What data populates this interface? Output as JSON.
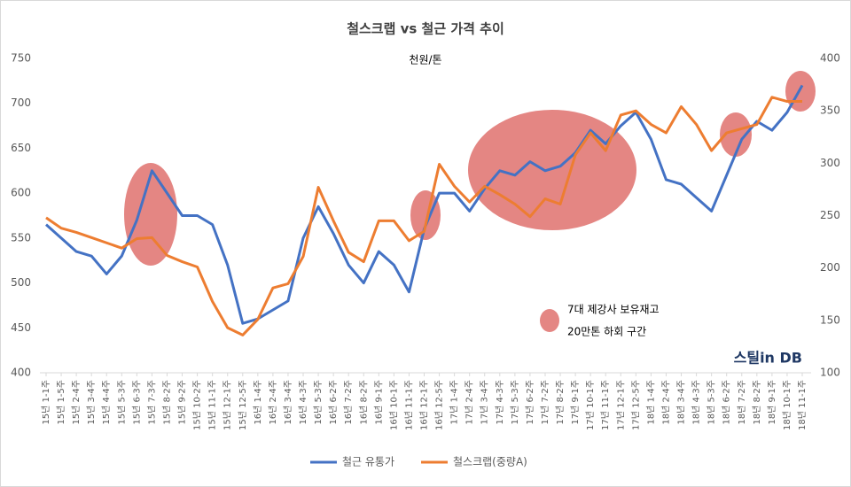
{
  "chart_data": {
    "type": "line",
    "title": "철스크랩 vs 철근 가격 추이",
    "subtitle": "천원/톤",
    "annotation": [
      "7대 제강사 보유재고",
      "20만톤 하회 구간"
    ],
    "source": "스틸in DB",
    "categories": [
      "15년 1-1주",
      "15년 1-5주",
      "15년 2-4주",
      "15년 3-4주",
      "15년 4-4주",
      "15년 5-3주",
      "15년 6-3주",
      "15년 7-3주",
      "15년 8-2주",
      "15년 9-2주",
      "15년 10-2주",
      "15년 11-1주",
      "15년 12-1주",
      "15년 12-5주",
      "16년 1-4주",
      "16년 2-4주",
      "16년 3-4주",
      "16년 4-3주",
      "16년 5-3주",
      "16년 6-2주",
      "16년 7-2주",
      "16년 8-2주",
      "16년 9-1주",
      "16년 10-1주",
      "16년 11-1주",
      "16년 12-1주",
      "16년 12-5주",
      "17년 1-4주",
      "17년 2-4주",
      "17년 3-4주",
      "17년 4-3주",
      "17년 5-3주",
      "17년 6-2주",
      "17년 7-2주",
      "17년 8-2주",
      "17년 9-1주",
      "17년 10-1주",
      "17년 11-1주",
      "17년 12-1주",
      "17년 12-5주",
      "18년 1-4주",
      "18년 2-4주",
      "18년 3-4주",
      "18년 4-3주",
      "18년 5-3주",
      "18년 6-2주",
      "18년 7-2주",
      "18년 8-2주",
      "18년 9-1주",
      "18년 10-1주",
      "18년 11-1주"
    ],
    "series": [
      {
        "name": "철근 유통가",
        "color": "#4472c4",
        "values": [
          565,
          550,
          535,
          530,
          510,
          530,
          570,
          625,
          600,
          575,
          575,
          565,
          520,
          455,
          460,
          470,
          480,
          550,
          585,
          555,
          520,
          500,
          535,
          520,
          490,
          560,
          600,
          600,
          580,
          605,
          625,
          620,
          635,
          625,
          630,
          645,
          670,
          655,
          675,
          690,
          660,
          615,
          610,
          595,
          580,
          620,
          660,
          680,
          670,
          690,
          720
        ]
      },
      {
        "name": "철스크랩(중량A)",
        "color": "#ed7d31",
        "axis": "y2",
        "values": [
          248,
          238,
          234,
          229,
          224,
          219,
          228,
          229,
          212,
          206,
          201,
          168,
          143,
          136,
          151,
          181,
          185,
          211,
          277,
          245,
          215,
          206,
          245,
          245,
          226,
          235,
          299,
          278,
          263,
          278,
          270,
          261,
          249,
          266,
          261,
          308,
          329,
          312,
          346,
          350,
          337,
          329,
          354,
          337,
          312,
          329,
          333,
          337,
          363,
          359,
          359
        ]
      }
    ],
    "ylim": [
      400,
      750
    ],
    "yticks": [
      400,
      450,
      500,
      550,
      600,
      650,
      700,
      750
    ],
    "y2lim": [
      100,
      400
    ],
    "y2ticks": [
      100,
      150,
      200,
      250,
      300,
      350,
      400
    ],
    "legend": "bottom"
  }
}
